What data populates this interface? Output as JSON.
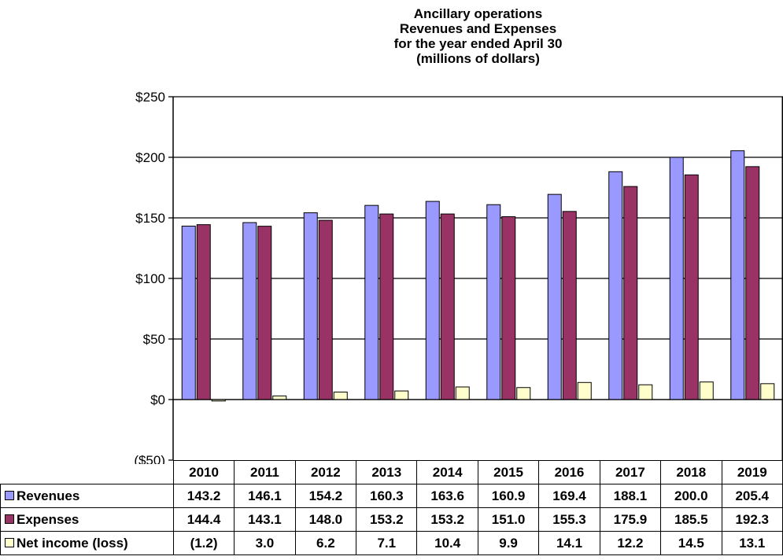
{
  "chart_data": {
    "type": "bar",
    "title": [
      "Ancillary operations",
      "Revenues and Expenses",
      "for the year ended  April 30",
      "(millions of dollars)"
    ],
    "categories": [
      "2010",
      "2011",
      "2012",
      "2013",
      "2014",
      "2015",
      "2016",
      "2017",
      "2018",
      "2019"
    ],
    "series": [
      {
        "name": "Revenues",
        "color": "#9999ff",
        "values": [
          143.2,
          146.1,
          154.2,
          160.3,
          163.6,
          160.9,
          169.4,
          188.1,
          200.0,
          205.4
        ],
        "labels": [
          "143.2",
          "146.1",
          "154.2",
          "160.3",
          "163.6",
          "160.9",
          "169.4",
          "188.1",
          "200.0",
          "205.4"
        ]
      },
      {
        "name": "Expenses",
        "color": "#993366",
        "values": [
          144.4,
          143.1,
          148.0,
          153.2,
          153.2,
          151.0,
          155.3,
          175.9,
          185.5,
          192.3
        ],
        "labels": [
          "144.4",
          "143.1",
          "148.0",
          "153.2",
          "153.2",
          "151.0",
          "155.3",
          "175.9",
          "185.5",
          "192.3"
        ]
      },
      {
        "name": "Net income (loss)",
        "color": "#ffffcc",
        "values": [
          -1.2,
          3.0,
          6.2,
          7.1,
          10.4,
          9.9,
          14.1,
          12.2,
          14.5,
          13.1
        ],
        "labels": [
          "(1.2)",
          "3.0",
          "6.2",
          "7.1",
          "10.4",
          "9.9",
          "14.1",
          "12.2",
          "14.5",
          "13.1"
        ]
      }
    ],
    "ylim": [
      -50,
      250
    ],
    "yticks": [
      -50,
      0,
      50,
      100,
      150,
      200,
      250
    ],
    "ytick_labels": [
      "($50)",
      "$0",
      "$50",
      "$100",
      "$150",
      "$200",
      "$250"
    ],
    "grid": true,
    "legend": "data-table"
  }
}
